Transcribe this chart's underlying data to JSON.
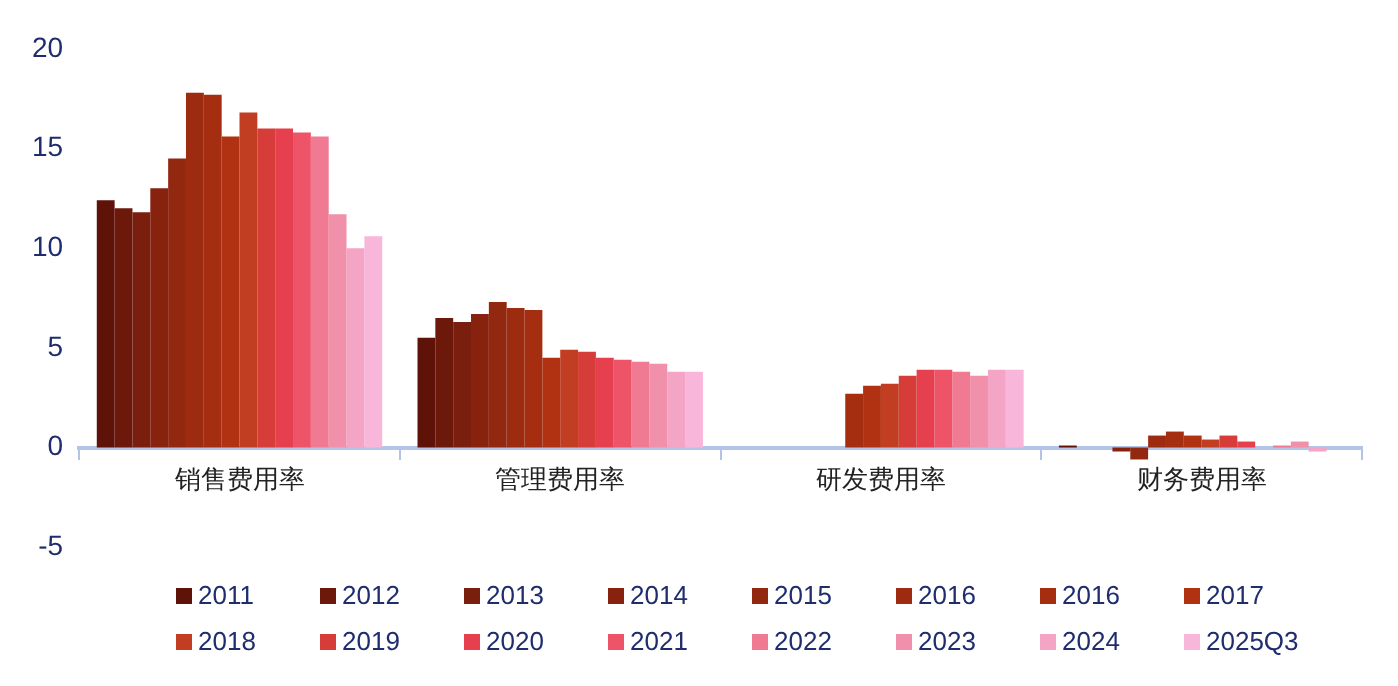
{
  "chart_data": {
    "type": "bar",
    "categories": [
      "销售费用率",
      "管理费用率",
      "研发费用率",
      "财务费用率"
    ],
    "series": [
      {
        "name": "2011",
        "color": "#5e1208",
        "values": [
          12.4,
          5.5,
          null,
          0.1
        ]
      },
      {
        "name": "2012",
        "color": "#6c180b",
        "values": [
          12.0,
          6.5,
          null,
          0
        ]
      },
      {
        "name": "2013",
        "color": "#7a1e0d",
        "values": [
          11.8,
          6.3,
          null,
          0
        ]
      },
      {
        "name": "2014",
        "color": "#86220e",
        "values": [
          13.0,
          6.7,
          null,
          -0.2
        ]
      },
      {
        "name": "2015",
        "color": "#922810",
        "values": [
          14.5,
          7.3,
          null,
          -0.6
        ]
      },
      {
        "name": "2016",
        "color": "#9c2b10",
        "values": [
          17.8,
          7.0,
          null,
          0.6
        ]
      },
      {
        "name": "2016",
        "color": "#a62e10",
        "values": [
          17.7,
          6.9,
          2.7,
          0.8
        ]
      },
      {
        "name": "2017",
        "color": "#b03212",
        "values": [
          15.6,
          4.5,
          3.1,
          0.6
        ]
      },
      {
        "name": "2018",
        "color": "#c23e22",
        "values": [
          16.8,
          4.9,
          3.2,
          0.4
        ]
      },
      {
        "name": "2019",
        "color": "#d63c38",
        "values": [
          16.0,
          4.8,
          3.6,
          0.6
        ]
      },
      {
        "name": "2020",
        "color": "#e6404e",
        "values": [
          16.0,
          4.5,
          3.9,
          0.3
        ]
      },
      {
        "name": "2021",
        "color": "#ee5468",
        "values": [
          15.8,
          4.4,
          3.9,
          0
        ]
      },
      {
        "name": "2022",
        "color": "#f07a92",
        "values": [
          15.6,
          4.3,
          3.8,
          0.1
        ]
      },
      {
        "name": "2023",
        "color": "#f090aa",
        "values": [
          11.7,
          4.2,
          3.6,
          0.3
        ]
      },
      {
        "name": "2024",
        "color": "#f4a4c4",
        "values": [
          10.0,
          3.8,
          3.9,
          -0.2
        ]
      },
      {
        "name": "2025Q3",
        "color": "#f8b6da",
        "values": [
          10.6,
          3.8,
          3.9,
          0
        ]
      }
    ],
    "ylim": [
      -5,
      20
    ],
    "yticks": [
      -5,
      0,
      5,
      10,
      15,
      20
    ],
    "grid": false,
    "legend": "bottom"
  }
}
